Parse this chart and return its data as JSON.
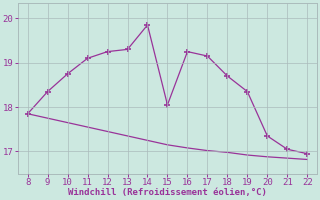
{
  "x_main": [
    8,
    9,
    10,
    11,
    12,
    13,
    14,
    15,
    16,
    17,
    18,
    19,
    20,
    21,
    22
  ],
  "y_main": [
    17.85,
    18.35,
    18.75,
    19.1,
    19.25,
    19.3,
    19.85,
    18.05,
    19.25,
    19.15,
    18.7,
    18.35,
    17.35,
    17.05,
    16.95
  ],
  "x_second": [
    8,
    9,
    10,
    11,
    12,
    13,
    14,
    15,
    16,
    17,
    18,
    19,
    20,
    21,
    22
  ],
  "y_second": [
    17.85,
    17.75,
    17.65,
    17.55,
    17.45,
    17.35,
    17.25,
    17.15,
    17.08,
    17.02,
    16.98,
    16.92,
    16.88,
    16.85,
    16.82
  ],
  "line_color": "#993399",
  "bg_color": "#cce8e0",
  "grid_color": "#aabbbb",
  "xlabel": "Windchill (Refroidissement éolien,°C)",
  "xlim": [
    7.5,
    22.5
  ],
  "ylim": [
    16.5,
    20.35
  ],
  "yticks": [
    17,
    18,
    19,
    20
  ],
  "xticks": [
    8,
    9,
    10,
    11,
    12,
    13,
    14,
    15,
    16,
    17,
    18,
    19,
    20,
    21,
    22
  ]
}
